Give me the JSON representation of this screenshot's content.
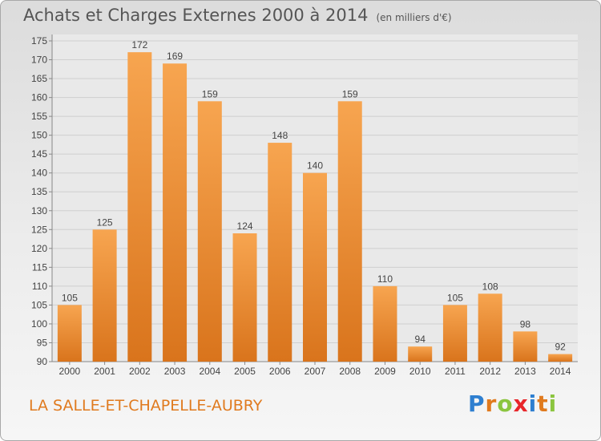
{
  "header": {
    "title": "Achats et Charges Externes 2000 à 2014",
    "unit": "(en milliers d'€)"
  },
  "footer": {
    "location": "LA SALLE-ET-CHAPELLE-AUBRY",
    "brand_letters": [
      {
        "char": "P",
        "color": "#2e7fd0"
      },
      {
        "char": "r",
        "color": "#e07a1e"
      },
      {
        "char": "o",
        "color": "#8bc53f"
      },
      {
        "char": "x",
        "color": "#e8262a"
      },
      {
        "char": "i",
        "color": "#2e7fd0"
      },
      {
        "char": "t",
        "color": "#e07a1e"
      },
      {
        "char": "i",
        "color": "#8bc53f"
      }
    ]
  },
  "chart_data": {
    "type": "bar",
    "categories": [
      "2000",
      "2001",
      "2002",
      "2003",
      "2004",
      "2005",
      "2006",
      "2007",
      "2008",
      "2009",
      "2010",
      "2011",
      "2012",
      "2013",
      "2014"
    ],
    "values": [
      105,
      125,
      172,
      169,
      159,
      124,
      148,
      140,
      159,
      110,
      94,
      105,
      108,
      98,
      92
    ],
    "ylim": [
      90,
      175
    ],
    "yticks": [
      90,
      95,
      100,
      105,
      110,
      115,
      120,
      125,
      130,
      135,
      140,
      145,
      150,
      155,
      160,
      165,
      170,
      175
    ],
    "grid": true,
    "bar_color_top": "#f7a550",
    "bar_color_bottom": "#d9741c"
  }
}
